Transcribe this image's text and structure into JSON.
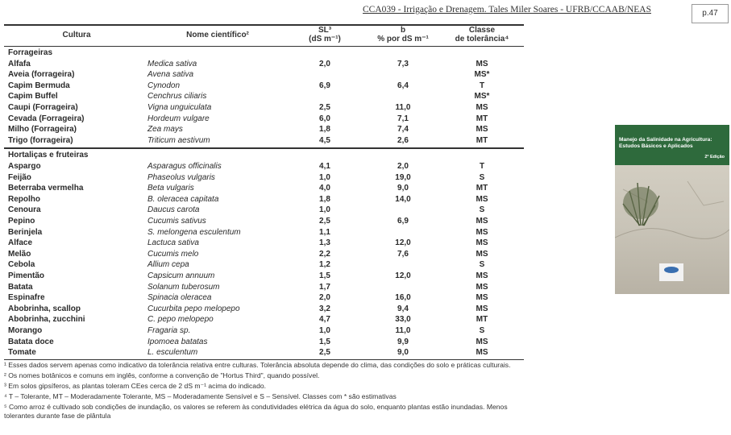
{
  "header": {
    "title": "CCA039 - Irrigação e Drenagem. Tales Miler Soares - UFRB/CCAAB/NEAS",
    "page": "p.47"
  },
  "table": {
    "columns": [
      [
        "Cultura"
      ],
      [
        "Nome científico²"
      ],
      [
        "SL³",
        "(dS m⁻¹)"
      ],
      [
        "b",
        "% por dS m⁻¹"
      ],
      [
        "Classe",
        "de tolerância⁴"
      ]
    ],
    "sections": [
      {
        "label": "Forrageiras",
        "rows": [
          [
            "Alfafa",
            "Medica sativa",
            "2,0",
            "7,3",
            "MS"
          ],
          [
            "Aveia (forrageira)",
            "Avena sativa",
            null,
            null,
            "MS*"
          ],
          [
            "Capim Bermuda",
            "Cynodon",
            "6,9",
            "6,4",
            "T"
          ],
          [
            "Capim Buffel",
            "Cenchrus ciliaris",
            null,
            null,
            "MS*"
          ],
          [
            "Caupi (Forrageira)",
            "Vigna unguiculata",
            "2,5",
            "11,0",
            "MS"
          ],
          [
            "Cevada (Forrageira)",
            "Hordeum vulgare",
            "6,0",
            "7,1",
            "MT"
          ],
          [
            "Milho (Forrageira)",
            "Zea mays",
            "1,8",
            "7,4",
            "MS"
          ],
          [
            "Trigo (forrageira)",
            "Triticum aestivum",
            "4,5",
            "2,6",
            "MT"
          ]
        ]
      },
      {
        "label": "Hortaliças e fruteiras",
        "rows": [
          [
            "Aspargo",
            "Asparagus officinalis",
            "4,1",
            "2,0",
            "T"
          ],
          [
            "Feijão",
            "Phaseolus vulgaris",
            "1,0",
            "19,0",
            "S"
          ],
          [
            "Beterraba vermelha",
            "Beta vulgaris",
            "4,0",
            "9,0",
            "MT"
          ],
          [
            "Repolho",
            "B. oleracea capitata",
            "1,8",
            "14,0",
            "MS"
          ],
          [
            "Cenoura",
            "Daucus carota",
            "1,0",
            null,
            "S"
          ],
          [
            "Pepino",
            "Cucumis sativus",
            "2,5",
            "6,9",
            "MS"
          ],
          [
            "Berinjela",
            "S. melongena esculentum",
            "1,1",
            null,
            "MS"
          ],
          [
            "Alface",
            "Lactuca sativa",
            "1,3",
            "12,0",
            "MS"
          ],
          [
            "Melão",
            "Cucumis melo",
            "2,2",
            "7,6",
            "MS"
          ],
          [
            "Cebola",
            "Allium cepa",
            "1,2",
            null,
            "S"
          ],
          [
            "Pimentão",
            "Capsicum annuum",
            "1,5",
            "12,0",
            "MS"
          ],
          [
            "Batata",
            "Solanum tuberosum",
            "1,7",
            null,
            "MS"
          ],
          [
            "Espinafre",
            "Spinacia oleracea",
            "2,0",
            "16,0",
            "MS"
          ],
          [
            "Abobrinha, scallop",
            "Cucurbita pepo melopepo",
            "3,2",
            "9,4",
            "MS"
          ],
          [
            "Abobrinha, zucchini",
            "C. pepo melopepo",
            "4,7",
            "33,0",
            "MT"
          ],
          [
            "Morango",
            "Fragaria sp.",
            "1,0",
            "11,0",
            "S"
          ],
          [
            "Batata doce",
            "Ipomoea batatas",
            "1,5",
            "9,9",
            "MS"
          ],
          [
            "Tomate",
            "L. esculentum",
            "2,5",
            "9,0",
            "MS"
          ]
        ]
      }
    ]
  },
  "footnotes": [
    "¹ Esses dados servem apenas como indicativo da tolerância relativa entre culturas. Tolerância absoluta depende do clima, das condições do solo e práticas culturais.",
    "² Os nomes botânicos e comuns em inglês, conforme a convenção de \"Hortus Third\", quando possível.",
    "³ Em solos gipsíferos, as plantas toleram CEes cerca de 2 dS m⁻¹ acima do indicado.",
    "⁴ T – Tolerante, MT – Moderadamente Tolerante, MS – Moderadamente Sensível e S – Sensível. Classes com * são estimativas",
    "⁵ Como arroz é cultivado sob condições de inundação, os valores se referem às condutividades elétrica da água do solo, enquanto plantas estão inundadas. Menos tolerantes durante fase de plântula"
  ],
  "cover": {
    "title": "Manejo da Salinidade na Agricultura: Estudos Básicos e Aplicados",
    "edition": "2ª Edição"
  }
}
